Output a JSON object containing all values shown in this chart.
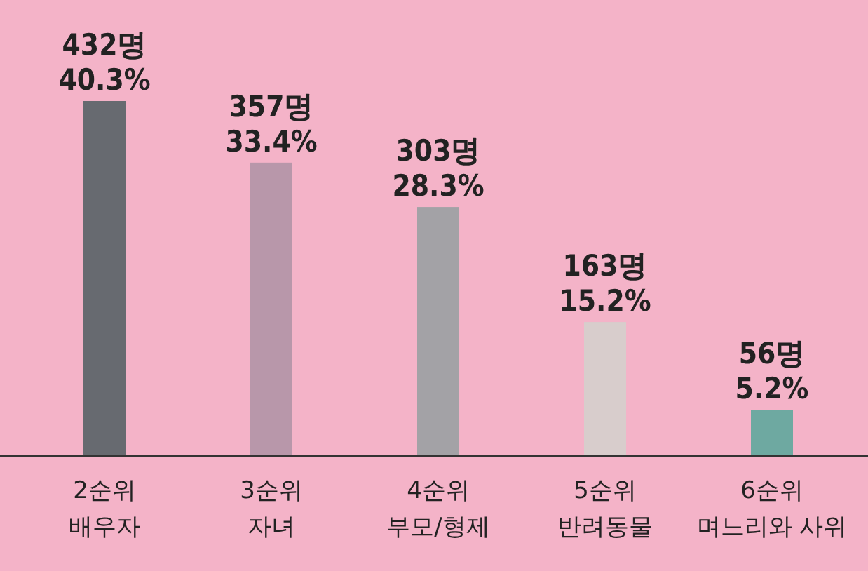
{
  "chart_data": {
    "type": "bar",
    "categories": [
      "2순위\n배우자",
      "3순위\n자녀",
      "4순위\n부모/형제",
      "5순위\n반려동물",
      "6순위\n며느리와 사위"
    ],
    "values": [
      432,
      357,
      303,
      163,
      56
    ],
    "colors": [
      "#676a70",
      "#b897aa",
      "#a3a2a6",
      "#d8cdcc",
      "#6ea9a1"
    ],
    "value_labels": [
      "432명\n40.3%",
      "357명\n33.4%",
      "303명\n28.3%",
      "163명\n15.2%",
      "56명\n5.2%"
    ]
  }
}
